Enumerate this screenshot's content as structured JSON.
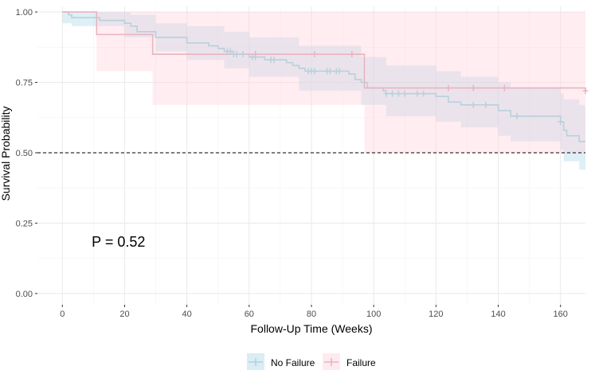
{
  "chart_data": {
    "type": "line",
    "subtype": "kaplan-meier",
    "title": "",
    "xlabel": "Follow-Up Time (Weeks)",
    "ylabel": "Survival Probability",
    "xlim": [
      -8,
      168
    ],
    "ylim": [
      -0.04,
      1.02
    ],
    "x_ticks": [
      0,
      20,
      40,
      60,
      80,
      100,
      120,
      140,
      160
    ],
    "y_ticks": [
      0.0,
      0.25,
      0.5,
      0.75,
      1.0
    ],
    "y_tick_labels": [
      "0.00",
      "0.25",
      "0.50",
      "0.75",
      "1.00"
    ],
    "grid": true,
    "reference_line": {
      "y": 0.5,
      "style": "dashed",
      "color": "#000000"
    },
    "annotation": {
      "text": "P = 0.52",
      "x": 12,
      "y": 0.2
    },
    "legend_position": "bottom",
    "series": [
      {
        "name": "No Failure",
        "color": "#b8d0dd",
        "band_color": "#add8e6",
        "steps": [
          [
            0,
            1.0
          ],
          [
            2,
            0.99
          ],
          [
            3,
            0.98
          ],
          [
            12,
            0.97
          ],
          [
            20,
            0.96
          ],
          [
            22,
            0.95
          ],
          [
            24,
            0.93
          ],
          [
            30,
            0.91
          ],
          [
            40,
            0.89
          ],
          [
            47,
            0.88
          ],
          [
            50,
            0.87
          ],
          [
            52,
            0.86
          ],
          [
            55,
            0.85
          ],
          [
            60,
            0.84
          ],
          [
            65,
            0.83
          ],
          [
            72,
            0.82
          ],
          [
            74,
            0.81
          ],
          [
            76,
            0.8
          ],
          [
            78,
            0.79
          ],
          [
            92,
            0.78
          ],
          [
            94,
            0.76
          ],
          [
            96,
            0.75
          ],
          [
            98,
            0.73
          ],
          [
            103,
            0.72
          ],
          [
            104,
            0.71
          ],
          [
            120,
            0.7
          ],
          [
            124,
            0.68
          ],
          [
            128,
            0.67
          ],
          [
            140,
            0.65
          ],
          [
            144,
            0.63
          ],
          [
            160,
            0.61
          ],
          [
            161,
            0.58
          ],
          [
            162,
            0.56
          ],
          [
            166,
            0.54
          ],
          [
            168,
            0.54
          ]
        ],
        "lower": [
          [
            0,
            0.96
          ],
          [
            3,
            0.95
          ],
          [
            20,
            0.91
          ],
          [
            30,
            0.86
          ],
          [
            40,
            0.83
          ],
          [
            52,
            0.8
          ],
          [
            60,
            0.77
          ],
          [
            76,
            0.72
          ],
          [
            96,
            0.67
          ],
          [
            104,
            0.63
          ],
          [
            120,
            0.61
          ],
          [
            128,
            0.59
          ],
          [
            140,
            0.56
          ],
          [
            144,
            0.54
          ],
          [
            160,
            0.51
          ],
          [
            161,
            0.47
          ],
          [
            166,
            0.44
          ],
          [
            168,
            0.44
          ]
        ],
        "upper": [
          [
            0,
            1.0
          ],
          [
            12,
            1.0
          ],
          [
            22,
            0.99
          ],
          [
            30,
            0.96
          ],
          [
            40,
            0.95
          ],
          [
            52,
            0.93
          ],
          [
            60,
            0.91
          ],
          [
            76,
            0.88
          ],
          [
            96,
            0.84
          ],
          [
            104,
            0.81
          ],
          [
            120,
            0.79
          ],
          [
            128,
            0.77
          ],
          [
            140,
            0.75
          ],
          [
            144,
            0.73
          ],
          [
            160,
            0.71
          ],
          [
            161,
            0.69
          ],
          [
            166,
            0.67
          ],
          [
            168,
            0.67
          ]
        ],
        "censor_x": [
          53,
          54,
          55,
          56,
          58,
          61,
          62,
          67,
          68,
          79,
          80,
          81,
          85,
          86,
          88,
          89,
          104,
          106,
          108,
          110,
          114,
          116,
          132,
          136,
          146,
          160
        ]
      },
      {
        "name": "Failure",
        "color": "#e8b4c0",
        "band_color": "#ffd1dc",
        "steps": [
          [
            0,
            1.0
          ],
          [
            11,
            0.92
          ],
          [
            29,
            0.85
          ],
          [
            97,
            0.73
          ],
          [
            168,
            0.72
          ]
        ],
        "lower": [
          [
            0,
            1.0
          ],
          [
            11,
            0.79
          ],
          [
            29,
            0.67
          ],
          [
            97,
            0.5
          ],
          [
            168,
            0.5
          ]
        ],
        "upper": [
          [
            0,
            1.0
          ],
          [
            168,
            1.0
          ]
        ],
        "censor_x": [
          62,
          81,
          93,
          124,
          132,
          142,
          168
        ]
      }
    ]
  }
}
